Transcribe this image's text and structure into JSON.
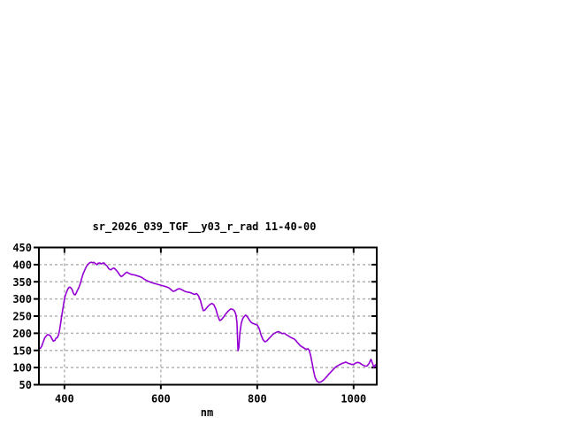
{
  "window": {
    "background_color": "#ffffff"
  },
  "chart_data": {
    "type": "line",
    "title": "sr_2026_039_TGF__y03_r_rad 11-40-00",
    "xlabel": "nm",
    "ylabel": "",
    "xlim": [
      347,
      1048
    ],
    "ylim": [
      50,
      450
    ],
    "xticks": [
      400,
      600,
      800,
      1000
    ],
    "yticks": [
      50,
      100,
      150,
      200,
      250,
      300,
      350,
      400,
      450
    ],
    "grid": true,
    "grid_style": "dashed",
    "legend": false,
    "line_color": "#9400d3",
    "grid_color": "#b3b3b3",
    "frame_color": "#000000",
    "text_color": "#000000",
    "series": [
      {
        "name": "spectral_radiance",
        "points": [
          [
            347,
            158
          ],
          [
            350,
            156
          ],
          [
            353,
            163
          ],
          [
            356,
            175
          ],
          [
            359,
            186
          ],
          [
            362,
            192
          ],
          [
            365,
            196
          ],
          [
            368,
            195
          ],
          [
            371,
            192
          ],
          [
            374,
            184
          ],
          [
            377,
            177
          ],
          [
            380,
            179
          ],
          [
            382,
            185
          ],
          [
            385,
            187
          ],
          [
            388,
            196
          ],
          [
            390,
            210
          ],
          [
            392,
            228
          ],
          [
            394,
            248
          ],
          [
            396,
            265
          ],
          [
            398,
            283
          ],
          [
            400,
            300
          ],
          [
            402,
            311
          ],
          [
            404,
            319
          ],
          [
            406,
            326
          ],
          [
            408,
            331
          ],
          [
            410,
            334
          ],
          [
            412,
            334
          ],
          [
            414,
            331
          ],
          [
            416,
            327
          ],
          [
            418,
            319
          ],
          [
            420,
            313
          ],
          [
            422,
            312
          ],
          [
            424,
            316
          ],
          [
            426,
            322
          ],
          [
            428,
            328
          ],
          [
            430,
            333
          ],
          [
            433,
            346
          ],
          [
            436,
            361
          ],
          [
            439,
            374
          ],
          [
            442,
            384
          ],
          [
            445,
            393
          ],
          [
            448,
            400
          ],
          [
            451,
            404
          ],
          [
            453,
            406
          ],
          [
            456,
            407
          ],
          [
            459,
            405
          ],
          [
            461,
            407
          ],
          [
            464,
            403
          ],
          [
            467,
            400
          ],
          [
            470,
            404
          ],
          [
            473,
            405
          ],
          [
            476,
            402
          ],
          [
            479,
            404
          ],
          [
            482,
            405
          ],
          [
            485,
            400
          ],
          [
            488,
            397
          ],
          [
            491,
            390
          ],
          [
            494,
            386
          ],
          [
            497,
            385
          ],
          [
            500,
            389
          ],
          [
            503,
            390
          ],
          [
            506,
            386
          ],
          [
            509,
            381
          ],
          [
            512,
            376
          ],
          [
            515,
            369
          ],
          [
            518,
            365
          ],
          [
            521,
            368
          ],
          [
            524,
            372
          ],
          [
            527,
            376
          ],
          [
            530,
            378
          ],
          [
            533,
            375
          ],
          [
            536,
            373
          ],
          [
            540,
            371
          ],
          [
            545,
            370
          ],
          [
            550,
            368
          ],
          [
            555,
            366
          ],
          [
            560,
            363
          ],
          [
            565,
            358
          ],
          [
            570,
            354
          ],
          [
            575,
            351
          ],
          [
            580,
            348
          ],
          [
            585,
            346
          ],
          [
            590,
            344
          ],
          [
            595,
            342
          ],
          [
            600,
            340
          ],
          [
            605,
            338
          ],
          [
            610,
            336
          ],
          [
            614,
            334
          ],
          [
            618,
            331
          ],
          [
            622,
            326
          ],
          [
            626,
            322
          ],
          [
            630,
            324
          ],
          [
            634,
            328
          ],
          [
            638,
            330
          ],
          [
            642,
            328
          ],
          [
            646,
            325
          ],
          [
            650,
            322
          ],
          [
            655,
            320
          ],
          [
            660,
            319
          ],
          [
            665,
            316
          ],
          [
            670,
            313
          ],
          [
            674,
            316
          ],
          [
            678,
            309
          ],
          [
            682,
            296
          ],
          [
            685,
            280
          ],
          [
            688,
            266
          ],
          [
            691,
            267
          ],
          [
            694,
            272
          ],
          [
            698,
            279
          ],
          [
            702,
            284
          ],
          [
            706,
            287
          ],
          [
            710,
            283
          ],
          [
            714,
            271
          ],
          [
            718,
            251
          ],
          [
            722,
            237
          ],
          [
            726,
            240
          ],
          [
            730,
            247
          ],
          [
            735,
            257
          ],
          [
            740,
            265
          ],
          [
            745,
            271
          ],
          [
            749,
            270
          ],
          [
            753,
            265
          ],
          [
            756,
            253
          ],
          [
            758,
            230
          ],
          [
            760,
            149
          ],
          [
            762,
            158
          ],
          [
            764,
            200
          ],
          [
            767,
            230
          ],
          [
            770,
            243
          ],
          [
            773,
            249
          ],
          [
            776,
            253
          ],
          [
            780,
            247
          ],
          [
            784,
            238
          ],
          [
            788,
            231
          ],
          [
            792,
            228
          ],
          [
            796,
            226
          ],
          [
            800,
            224
          ],
          [
            804,
            214
          ],
          [
            808,
            195
          ],
          [
            812,
            181
          ],
          [
            816,
            175
          ],
          [
            820,
            178
          ],
          [
            824,
            184
          ],
          [
            828,
            190
          ],
          [
            832,
            196
          ],
          [
            836,
            200
          ],
          [
            840,
            203
          ],
          [
            844,
            205
          ],
          [
            848,
            202
          ],
          [
            852,
            199
          ],
          [
            856,
            200
          ],
          [
            860,
            196
          ],
          [
            864,
            193
          ],
          [
            868,
            189
          ],
          [
            872,
            186
          ],
          [
            876,
            184
          ],
          [
            880,
            179
          ],
          [
            884,
            172
          ],
          [
            888,
            166
          ],
          [
            892,
            161
          ],
          [
            896,
            158
          ],
          [
            899,
            155
          ],
          [
            902,
            153
          ],
          [
            905,
            155
          ],
          [
            908,
            150
          ],
          [
            911,
            135
          ],
          [
            914,
            112
          ],
          [
            917,
            90
          ],
          [
            920,
            72
          ],
          [
            924,
            60
          ],
          [
            928,
            57
          ],
          [
            932,
            58
          ],
          [
            936,
            62
          ],
          [
            940,
            67
          ],
          [
            944,
            73
          ],
          [
            948,
            80
          ],
          [
            952,
            86
          ],
          [
            956,
            92
          ],
          [
            960,
            98
          ],
          [
            964,
            103
          ],
          [
            968,
            106
          ],
          [
            972,
            109
          ],
          [
            976,
            112
          ],
          [
            980,
            114
          ],
          [
            984,
            116
          ],
          [
            988,
            113
          ],
          [
            992,
            111
          ],
          [
            996,
            109
          ],
          [
            1000,
            109
          ],
          [
            1004,
            113
          ],
          [
            1008,
            115
          ],
          [
            1012,
            114
          ],
          [
            1016,
            110
          ],
          [
            1020,
            107
          ],
          [
            1024,
            104
          ],
          [
            1028,
            105
          ],
          [
            1032,
            112
          ],
          [
            1036,
            124
          ],
          [
            1039,
            113
          ],
          [
            1042,
            101
          ],
          [
            1045,
            108
          ],
          [
            1048,
            103
          ]
        ]
      }
    ]
  }
}
